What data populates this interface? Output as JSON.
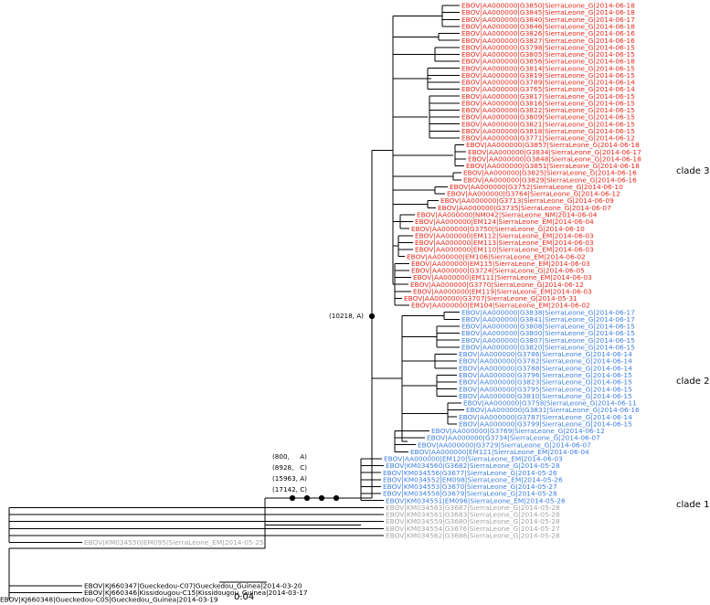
{
  "colors": {
    "red": "#e8291c",
    "blue": "#3f7fe0",
    "gray": "#a5a5a5",
    "black": "#000000"
  },
  "clades": [
    {
      "name": "clade 3",
      "color": "red"
    },
    {
      "name": "clade 2",
      "color": "blue"
    },
    {
      "name": "clade 1",
      "color": "gray"
    }
  ],
  "node_annotations": {
    "upper": "(10218, A)",
    "lower": [
      "(800,     A)",
      "(8928,   C)",
      "(15963, A)",
      "(17142, C)"
    ]
  },
  "scale_bar": {
    "label": "0.04"
  },
  "leaves": [
    {
      "label": "EBOV|AA000000|G3850|SierraLeone_G|2014-06-18",
      "color": "red"
    },
    {
      "label": "EBOV|AA000000|G3845|SierraLeone_G|2014-06-18",
      "color": "red"
    },
    {
      "label": "EBOV|AA000000|G3840|SierraLeone_G|2014-06-17",
      "color": "red"
    },
    {
      "label": "EBOV|AA000000|G3846|SierraLeone_G|2014-06-18",
      "color": "red"
    },
    {
      "label": "EBOV|AA000000|G3826|SierraLeone_G|2014-06-16",
      "color": "red"
    },
    {
      "label": "EBOV|AA000000|G3827|SierraLeone_G|2014-06-16",
      "color": "red"
    },
    {
      "label": "EBOV|AA000000|G3798|SierraLeone_G|2014-06-15",
      "color": "red"
    },
    {
      "label": "EBOV|AA000000|G3805|SierraLeone_G|2014-06-15",
      "color": "red"
    },
    {
      "label": "EBOV|AA000000|G3856|SierraLeone_G|2014-06-18",
      "color": "red"
    },
    {
      "label": "EBOV|AA000000|G3814|SierraLeone_G|2014-06-15",
      "color": "red"
    },
    {
      "label": "EBOV|AA000000|G3819|SierraLeone_G|2014-06-15",
      "color": "red"
    },
    {
      "label": "EBOV|AA000000|G3789|SierraLeone_G|2014-06-14",
      "color": "red"
    },
    {
      "label": "EBOV|AA000000|G3765|SierraLeone_G|2014-06-14",
      "color": "red"
    },
    {
      "label": "EBOV|AA000000|G3817|SierraLeone_G|2014-06-15",
      "color": "red"
    },
    {
      "label": "EBOV|AA000000|G3816|SierraLeone_G|2014-06-15",
      "color": "red"
    },
    {
      "label": "EBOV|AA000000|G3822|SierraLeone_G|2014-06-15",
      "color": "red"
    },
    {
      "label": "EBOV|AA000000|G3809|SierraLeone_G|2014-06-15",
      "color": "red"
    },
    {
      "label": "EBOV|AA000000|G3821|SierraLeone_G|2014-06-15",
      "color": "red"
    },
    {
      "label": "EBOV|AA000000|G3818|SierraLeone_G|2014-06-15",
      "color": "red"
    },
    {
      "label": "EBOV|AA000000|G3771|SierraLeone_G|2014-06-12",
      "color": "red"
    },
    {
      "label": "EBOV|AA000000|G3857|SierraLeone_G|2014-06-18",
      "color": "red"
    },
    {
      "label": "EBOV|AA000000|G3834|SierraLeone_G|2014-06-17",
      "color": "red"
    },
    {
      "label": "EBOV|AA000000|G3848|SierraLeone_G|2014-06-18",
      "color": "red"
    },
    {
      "label": "EBOV|AA000000|G3851|SierraLeone_G|2014-06-18",
      "color": "red"
    },
    {
      "label": "EBOV|AA000000|G3825|SierraLeone_G|2014-06-16",
      "color": "red"
    },
    {
      "label": "EBOV|AA000000|G3829|SierraLeone_G|2014-06-16",
      "color": "red"
    },
    {
      "label": "EBOV|AA000000|G3752|SierraLeone_G|2014-06-10",
      "color": "red"
    },
    {
      "label": "EBOV|AA000000|G3764|SierraLeone_G|2014-06-12",
      "color": "red"
    },
    {
      "label": "EBOV|AA000000|G3713|SierraLeone_G|2014-06-09",
      "color": "red"
    },
    {
      "label": "EBOV|AA000000|G3735|SierraLeone_G|2014-06-07",
      "color": "red"
    },
    {
      "label": "EBOV|AA000000|NM042|SierraLeone_NM|2014-06-04",
      "color": "red"
    },
    {
      "label": "EBOV|AA000000|EM124|SierraLeone_EM|2014-06-04",
      "color": "red"
    },
    {
      "label": "EBOV|AA000000|G3750|SierraLeone_G|2014-06-10",
      "color": "red"
    },
    {
      "label": "EBOV|AA000000|EM112|SierraLeone_EM|2014-06-03",
      "color": "red"
    },
    {
      "label": "EBOV|AA000000|EM113|SierraLeone_EM|2014-06-03",
      "color": "red"
    },
    {
      "label": "EBOV|AA000000|EM110|SierraLeone_EM|2014-06-03",
      "color": "red"
    },
    {
      "label": "EBOV|AA000000|EM106|SierraLeone_EM|2014-06-02",
      "color": "red"
    },
    {
      "label": "EBOV|AA000000|EM115|SierraLeone_EM|2014-06-03",
      "color": "red"
    },
    {
      "label": "EBOV|AA000000|G3724|SierraLeone_G|2014-06-05",
      "color": "red"
    },
    {
      "label": "EBOV|AA000000|EM111|SierraLeone_EM|2014-06-03",
      "color": "red"
    },
    {
      "label": "EBOV|AA000000|G3770|SierraLeone_G|2014-06-12",
      "color": "red"
    },
    {
      "label": "EBOV|AA000000|EM119|SierraLeone_EM|2014-06-03",
      "color": "red"
    },
    {
      "label": "EBOV|AA000000|G3707|SierraLeone_G|2014-05-31",
      "color": "red"
    },
    {
      "label": "EBOV|AA000000|EM104|SierraLeone_EM|2014-06-02",
      "color": "red"
    },
    {
      "label": "EBOV|AA000000|G3838|SierraLeone_G|2014-06-17",
      "color": "blue"
    },
    {
      "label": "EBOV|AA000000|G3841|SierraLeone_G|2014-06-17",
      "color": "blue"
    },
    {
      "label": "EBOV|AA000000|G3808|SierraLeone_G|2014-06-15",
      "color": "blue"
    },
    {
      "label": "EBOV|AA000000|G3800|SierraLeone_G|2014-06-15",
      "color": "blue"
    },
    {
      "label": "EBOV|AA000000|G3807|SierraLeone_G|2014-06-15",
      "color": "blue"
    },
    {
      "label": "EBOV|AA000000|G3820|SierraLeone_G|2014-06-15",
      "color": "blue"
    },
    {
      "label": "EBOV|AA000000|G3786|SierraLeone_G|2014-06-14",
      "color": "blue"
    },
    {
      "label": "EBOV|AA000000|G3782|SierraLeone_G|2014-06-14",
      "color": "blue"
    },
    {
      "label": "EBOV|AA000000|G3788|SierraLeone_G|2014-06-14",
      "color": "blue"
    },
    {
      "label": "EBOV|AA000000|G3796|SierraLeone_G|2014-06-15",
      "color": "blue"
    },
    {
      "label": "EBOV|AA000000|G3823|SierraLeone_G|2014-06-15",
      "color": "blue"
    },
    {
      "label": "EBOV|AA000000|G3795|SierraLeone_G|2014-06-15",
      "color": "blue"
    },
    {
      "label": "EBOV|AA000000|G3810|SierraLeone_G|2014-06-15",
      "color": "blue"
    },
    {
      "label": "EBOV|AA000000|G3758|SierraLeone_G|2014-06-11",
      "color": "blue"
    },
    {
      "label": "EBOV|AA000000|G3831|SierraLeone_G|2014-06-16",
      "color": "blue"
    },
    {
      "label": "EBOV|AA000000|G3787|SierraLeone_G|2014-06-14",
      "color": "blue"
    },
    {
      "label": "EBOV|AA000000|G3799|SierraLeone_G|2014-06-15",
      "color": "blue"
    },
    {
      "label": "EBOV|AA000000|G3769|SierraLeone_G|2014-06-12",
      "color": "blue"
    },
    {
      "label": "EBOV|AA000000|G3734|SierraLeone_G|2014-06-07",
      "color": "blue"
    },
    {
      "label": "EBOV|AA000000|G3729|SierraLeone_G|2014-06-07",
      "color": "blue"
    },
    {
      "label": "EBOV|AA000000|EM121|SierraLeone_EM|2014-06-04",
      "color": "blue"
    },
    {
      "label": "EBOV|AA000000|EM120|SierraLeone_EM|2014-06-03",
      "color": "blue"
    },
    {
      "label": "EBOV|KM034560|G3682|SierraLeone_G|2014-05-28",
      "color": "blue"
    },
    {
      "label": "EBOV|KM034556|G3677|SierraLeone_G|2014-05-26",
      "color": "blue"
    },
    {
      "label": "EBOV|KM034552|EM098|SierraLeone_EM|2014-05-26",
      "color": "blue"
    },
    {
      "label": "EBOV|KM034553|G3670|SierraLeone_G|2014-05-27",
      "color": "blue"
    },
    {
      "label": "EBOV|KM034558|G3679|SierraLeone_G|2014-05-28",
      "color": "blue"
    },
    {
      "label": "EBOV|KM034551|EM096|SierraLeone_EM|2014-05-26",
      "color": "blue"
    },
    {
      "label": "EBOV|KM034563|G3687|SierraLeone_G|2014-05-28",
      "color": "gray"
    },
    {
      "label": "EBOV|KM034561|G3683|SierraLeone_G|2014-05-28",
      "color": "gray"
    },
    {
      "label": "EBOV|KM034559|G3680|SierraLeone_G|2014-05-28",
      "color": "gray"
    },
    {
      "label": "EBOV|KM034554|G3676|SierraLeone_G|2014-05-27",
      "color": "gray"
    },
    {
      "label": "EBOV|KM034562|G3686|SierraLeone_G|2014-05-28",
      "color": "gray"
    },
    {
      "label": "EBOV|KM034550|EM095|SierraLeone_EM|2014-05-25",
      "color": "gray"
    },
    {
      "label": "EBOV|KJ660347|Gueckedou-C07|Gueckedou_Guinea|2014-03-20",
      "color": "black"
    },
    {
      "label": "EBOV|KJ660346|Kissidougou-C15|Kissidougou_Guinea|2014-03-17",
      "color": "black"
    },
    {
      "label": "EBOV|KJ660348|Gueckedou-C05|Gueckedou_Guinea|2014-03-19",
      "color": "black"
    }
  ]
}
